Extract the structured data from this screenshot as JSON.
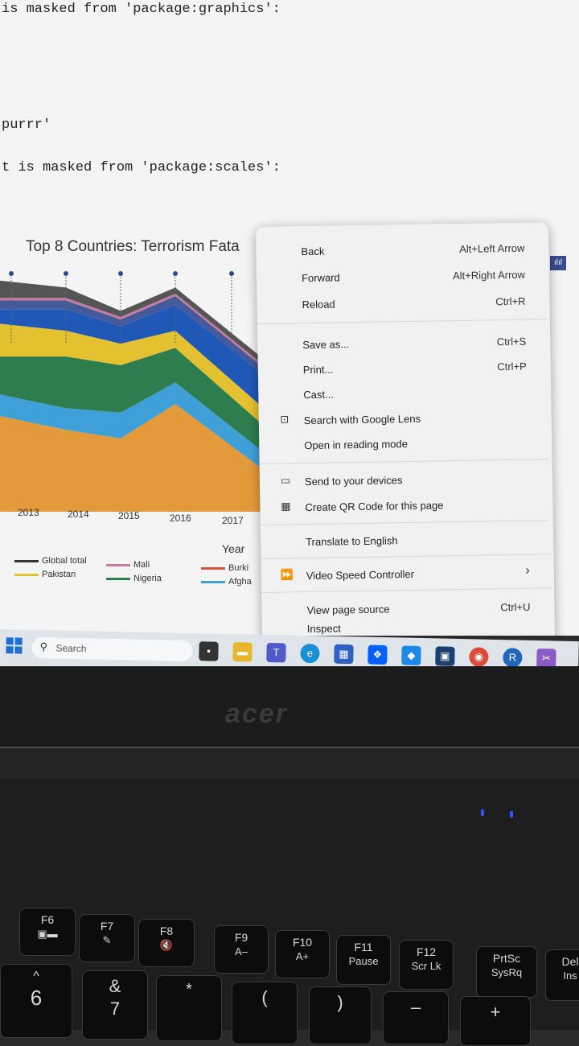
{
  "console": {
    "line1": "is masked from 'package:graphics':",
    "line2": "purrr'",
    "line3": "t is masked from 'package:scales':"
  },
  "chart_data": {
    "type": "area",
    "title": "Top 8 Countries: Terrorism Fata",
    "xlabel": "Year",
    "x": [
      "2013",
      "2014",
      "2015",
      "2016",
      "2017"
    ],
    "legend": [
      {
        "name": "Global total",
        "color": "#333333"
      },
      {
        "name": "Mali",
        "color": "#c77aa0"
      },
      {
        "name": "Burki",
        "color": "#d9533c"
      },
      {
        "name": "Pakistan",
        "color": "#e3c130"
      },
      {
        "name": "Nigeria",
        "color": "#2e7d4f"
      },
      {
        "name": "Afgha",
        "color": "#3fa0d8"
      }
    ],
    "series": [
      {
        "name": "Afgha",
        "color": "#e39a3b",
        "values": [
          115,
          95,
          85,
          125,
          40
        ]
      },
      {
        "name": "Afgha",
        "color": "#3fa0d8",
        "values": [
          25,
          25,
          30,
          25,
          20
        ]
      },
      {
        "name": "Nigeria",
        "color": "#2e7d4f",
        "values": [
          40,
          60,
          55,
          40,
          30
        ]
      },
      {
        "name": "Pakistan",
        "color": "#e3c130",
        "values": [
          40,
          30,
          25,
          20,
          20
        ]
      },
      {
        "name": "",
        "color": "#2058b8",
        "values": [
          15,
          25,
          20,
          30,
          40
        ]
      },
      {
        "name": "",
        "color": "#445a9a",
        "values": [
          10,
          10,
          8,
          10,
          8
        ]
      },
      {
        "name": "Mali",
        "color": "#c77aa0",
        "values": [
          3,
          3,
          3,
          3,
          3
        ]
      },
      {
        "name": "Global total",
        "color": "#555555",
        "values": [
          22,
          12,
          7,
          7,
          7
        ]
      }
    ],
    "ylim": [
      0,
      280
    ]
  },
  "context_menu": {
    "items": [
      {
        "label": "Back",
        "shortcut": "Alt+Left Arrow"
      },
      {
        "label": "Forward",
        "shortcut": "Alt+Right Arrow"
      },
      {
        "label": "Reload",
        "shortcut": "Ctrl+R"
      },
      {
        "label": "Save as...",
        "shortcut": "Ctrl+S"
      },
      {
        "label": "Print...",
        "shortcut": "Ctrl+P"
      },
      {
        "label": "Cast...",
        "shortcut": ""
      },
      {
        "label": "Search with Google Lens",
        "shortcut": ""
      },
      {
        "label": "Open in reading mode",
        "shortcut": ""
      },
      {
        "label": "Send to your devices",
        "shortcut": ""
      },
      {
        "label": "Create QR Code for this page",
        "shortcut": ""
      },
      {
        "label": "Translate to English",
        "shortcut": ""
      },
      {
        "label": "Video Speed Controller",
        "shortcut": "›"
      },
      {
        "label": "View page source",
        "shortcut": "Ctrl+U"
      },
      {
        "label": "Inspect",
        "shortcut": ""
      }
    ]
  },
  "taskbar": {
    "search_label": "Search"
  },
  "laptop": {
    "brand": "acer"
  },
  "keyboard": {
    "keys": [
      {
        "top": "F6",
        "bottom": "▣▬"
      },
      {
        "top": "F7",
        "bottom": "✎"
      },
      {
        "top": "F8",
        "bottom": "🔇"
      },
      {
        "top": "F9",
        "bottom": "A–"
      },
      {
        "top": "F10",
        "bottom": "A+"
      },
      {
        "top": "F11",
        "bottom": "Pause"
      },
      {
        "top": "F12",
        "bottom": "Scr Lk"
      },
      {
        "top": "PrtSc",
        "bottom": "SysRq"
      },
      {
        "top": "Del",
        "bottom": "Ins"
      }
    ],
    "row2": [
      "6",
      "&",
      "*",
      "(",
      ")",
      "–",
      "+"
    ],
    "row2_sub": [
      "^",
      "7",
      "",
      "",
      "",
      "",
      ""
    ]
  }
}
